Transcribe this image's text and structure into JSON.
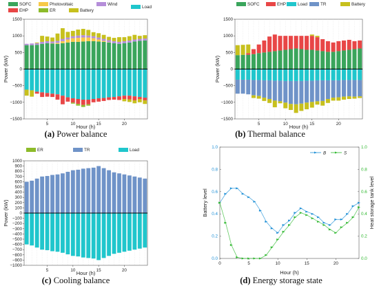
{
  "colors": {
    "SOFC": "#3aa55c",
    "Photovoltaic": "#f7c948",
    "Wind": "#b58ed9",
    "EHP": "#e84646",
    "ER": "#8dbb2a",
    "Battery": "#c7c01d",
    "Load": "#20c6cc",
    "TR": "#6f93c8",
    "B_line": "#1d8fd6",
    "S_line": "#2fb82f"
  },
  "captions": [
    {
      "label": "(a)",
      "text": " Power balance"
    },
    {
      "label": "(b)",
      "text": " Thermal balance"
    },
    {
      "label": "(c)",
      "text": " Cooling balance"
    },
    {
      "label": "(d)",
      "text": " Energy storage state"
    }
  ],
  "chart_data": [
    {
      "type": "bar",
      "stacked": true,
      "title": "",
      "xlabel": "Hour (h)",
      "ylabel": "Power (kW)",
      "ylim": [
        -1500,
        1500
      ],
      "yticks": [
        -1500,
        -1000,
        -500,
        0,
        500,
        1000,
        1500
      ],
      "xticks": [
        5,
        10,
        15,
        20
      ],
      "x": [
        1,
        2,
        3,
        4,
        5,
        6,
        7,
        8,
        9,
        10,
        11,
        12,
        13,
        14,
        15,
        16,
        17,
        18,
        19,
        20,
        21,
        22,
        23,
        24
      ],
      "legend_position": "top",
      "series": [
        {
          "name": "SOFC",
          "sign": 1,
          "values": [
            720,
            720,
            730,
            760,
            780,
            770,
            760,
            780,
            800,
            820,
            820,
            830,
            840,
            840,
            830,
            820,
            800,
            780,
            760,
            780,
            800,
            830,
            850,
            860
          ]
        },
        {
          "name": "Photovoltaic",
          "sign": 1,
          "values": [
            0,
            0,
            0,
            0,
            0,
            10,
            30,
            60,
            90,
            110,
            120,
            120,
            110,
            90,
            60,
            30,
            10,
            0,
            0,
            0,
            0,
            0,
            0,
            0
          ]
        },
        {
          "name": "Wind",
          "sign": 1,
          "values": [
            40,
            50,
            50,
            60,
            60,
            50,
            60,
            70,
            60,
            60,
            70,
            70,
            60,
            60,
            60,
            60,
            60,
            60,
            60,
            60,
            60,
            60,
            60,
            60
          ]
        },
        {
          "name": "Battery",
          "sign": 1,
          "values": [
            0,
            0,
            20,
            180,
            140,
            120,
            220,
            320,
            170,
            160,
            180,
            190,
            170,
            120,
            130,
            120,
            100,
            100,
            140,
            120,
            130,
            140,
            90,
            100
          ]
        },
        {
          "name": "Load",
          "sign": -1,
          "values": [
            -620,
            -640,
            -680,
            -700,
            -720,
            -740,
            -760,
            -800,
            -850,
            -880,
            -900,
            -920,
            -920,
            -900,
            -880,
            -870,
            -850,
            -840,
            -820,
            -800,
            -800,
            -820,
            -840,
            -860
          ]
        },
        {
          "name": "EHP",
          "sign": -1,
          "values": [
            0,
            0,
            -60,
            -140,
            -110,
            -100,
            -160,
            -260,
            -130,
            -130,
            -150,
            -160,
            -140,
            -100,
            -100,
            -90,
            -80,
            -80,
            -110,
            -100,
            -110,
            -120,
            -60,
            -80
          ]
        },
        {
          "name": "ER",
          "sign": -1,
          "values": [
            0,
            0,
            0,
            0,
            0,
            0,
            0,
            0,
            0,
            -30,
            -50,
            -60,
            -40,
            0,
            0,
            0,
            0,
            0,
            0,
            0,
            0,
            0,
            0,
            0
          ]
        },
        {
          "name": "Battery",
          "sign": -1,
          "values": [
            -180,
            -190,
            0,
            0,
            0,
            0,
            0,
            0,
            0,
            0,
            0,
            0,
            0,
            0,
            0,
            0,
            0,
            0,
            0,
            -70,
            -80,
            -90,
            -100,
            -110
          ]
        }
      ]
    },
    {
      "type": "bar",
      "stacked": true,
      "title": "",
      "xlabel": "Hour (h)",
      "ylabel": "Power (kW)",
      "ylim": [
        -1500,
        1500
      ],
      "yticks": [
        -1500,
        -1000,
        -500,
        0,
        500,
        1000,
        1500
      ],
      "xticks": [
        5,
        10,
        15,
        20
      ],
      "x": [
        1,
        2,
        3,
        4,
        5,
        6,
        7,
        8,
        9,
        10,
        11,
        12,
        13,
        14,
        15,
        16,
        17,
        18,
        19,
        20,
        21,
        22,
        23,
        24
      ],
      "legend_position": "top",
      "series": [
        {
          "name": "SOFC",
          "sign": 1,
          "values": [
            420,
            430,
            430,
            450,
            480,
            500,
            520,
            540,
            560,
            580,
            600,
            620,
            600,
            580,
            580,
            560,
            540,
            520,
            520,
            540,
            560,
            580,
            600,
            620
          ]
        },
        {
          "name": "EHP",
          "sign": 1,
          "values": [
            0,
            0,
            50,
            150,
            260,
            360,
            460,
            500,
            440,
            420,
            400,
            380,
            400,
            420,
            420,
            400,
            360,
            320,
            280,
            300,
            300,
            300,
            240,
            240
          ]
        },
        {
          "name": "Battery",
          "sign": 1,
          "values": [
            300,
            300,
            260,
            0,
            0,
            0,
            0,
            0,
            0,
            0,
            0,
            0,
            0,
            0,
            40,
            40,
            0,
            0,
            0,
            0,
            0,
            0,
            0,
            0
          ]
        },
        {
          "name": "Load",
          "sign": -1,
          "values": [
            -320,
            -320,
            -320,
            -330,
            -330,
            -340,
            -340,
            -350,
            -350,
            -360,
            -360,
            -360,
            -360,
            -350,
            -350,
            -340,
            -340,
            -340,
            -340,
            -340,
            -330,
            -330,
            -330,
            -330
          ]
        },
        {
          "name": "TR",
          "sign": -1,
          "values": [
            -420,
            -420,
            -440,
            -460,
            -480,
            -520,
            -560,
            -600,
            -620,
            -650,
            -690,
            -700,
            -680,
            -660,
            -640,
            -630,
            -620,
            -560,
            -520,
            -510,
            -500,
            -490,
            -500,
            -490
          ]
        },
        {
          "name": "Battery",
          "sign": -1,
          "values": [
            0,
            0,
            0,
            -80,
            -80,
            -100,
            -120,
            -200,
            -60,
            -170,
            -180,
            -260,
            -220,
            -200,
            -170,
            -100,
            -140,
            -120,
            -90,
            -100,
            -90,
            -80,
            -60,
            -50
          ]
        }
      ]
    },
    {
      "type": "bar",
      "stacked": true,
      "title": "",
      "xlabel": "Hour (h)",
      "ylabel": "Power (kW)",
      "ylim": [
        -1000,
        1000
      ],
      "yticks": [
        -1000,
        -900,
        -800,
        -700,
        -600,
        -500,
        -400,
        -300,
        -200,
        -100,
        0,
        100,
        200,
        300,
        400,
        500,
        600,
        700,
        800,
        900,
        1000
      ],
      "xticks": [
        5,
        10,
        15,
        20
      ],
      "x": [
        1,
        2,
        3,
        4,
        5,
        6,
        7,
        8,
        9,
        10,
        11,
        12,
        13,
        14,
        15,
        16,
        17,
        18,
        19,
        20,
        21,
        22,
        23,
        24
      ],
      "legend_position": "top",
      "series": [
        {
          "name": "ER",
          "sign": 1,
          "values": [
            0,
            0,
            0,
            0,
            0,
            0,
            0,
            0,
            0,
            0,
            0,
            0,
            0,
            0,
            0,
            0,
            0,
            0,
            0,
            0,
            0,
            0,
            0,
            0
          ]
        },
        {
          "name": "TR",
          "sign": 1,
          "values": [
            600,
            620,
            660,
            700,
            710,
            730,
            740,
            760,
            790,
            820,
            830,
            850,
            860,
            870,
            900,
            860,
            820,
            780,
            760,
            740,
            720,
            700,
            680,
            660
          ]
        },
        {
          "name": "Load",
          "sign": -1,
          "values": [
            -600,
            -620,
            -660,
            -700,
            -710,
            -730,
            -740,
            -760,
            -790,
            -820,
            -830,
            -850,
            -860,
            -870,
            -900,
            -860,
            -820,
            -780,
            -760,
            -740,
            -720,
            -700,
            -680,
            -660
          ]
        }
      ]
    },
    {
      "type": "line",
      "title": "",
      "xlabel": "Hour (h)",
      "ylabel": "Battery level",
      "y2label": "Heat storage tank level",
      "xlim": [
        0,
        24
      ],
      "ylim": [
        0,
        1
      ],
      "y2lim": [
        0,
        1
      ],
      "xticks": [
        0,
        5,
        10,
        15,
        20
      ],
      "yticks": [
        0,
        0.2,
        0.4,
        0.6,
        0.8,
        1.0
      ],
      "ytick_labels": [
        "0.0",
        "0.2",
        "0.4",
        "0.6",
        "0.8",
        "1.0"
      ],
      "legend_position": "top-right",
      "series": [
        {
          "name": "B",
          "axis": "left",
          "x": [
            0,
            1,
            2,
            3,
            4,
            5,
            6,
            7,
            8,
            9,
            10,
            11,
            12,
            13,
            14,
            15,
            16,
            17,
            18,
            19,
            20,
            21,
            22,
            23,
            24
          ],
          "values": [
            0.5,
            0.58,
            0.63,
            0.63,
            0.58,
            0.55,
            0.51,
            0.43,
            0.33,
            0.27,
            0.23,
            0.3,
            0.34,
            0.41,
            0.45,
            0.42,
            0.4,
            0.37,
            0.32,
            0.3,
            0.35,
            0.35,
            0.4,
            0.47,
            0.5
          ]
        },
        {
          "name": "S",
          "axis": "right",
          "x": [
            0,
            1,
            2,
            3,
            4,
            5,
            6,
            7,
            8,
            9,
            10,
            11,
            12,
            13,
            14,
            15,
            16,
            17,
            18,
            19,
            20,
            21,
            22,
            23,
            24
          ],
          "values": [
            0.5,
            0.32,
            0.12,
            0.01,
            0.0,
            0.0,
            0.0,
            0.0,
            0.03,
            0.1,
            0.17,
            0.24,
            0.3,
            0.37,
            0.41,
            0.39,
            0.36,
            0.33,
            0.3,
            0.26,
            0.23,
            0.28,
            0.32,
            0.37,
            0.46
          ]
        }
      ]
    }
  ]
}
